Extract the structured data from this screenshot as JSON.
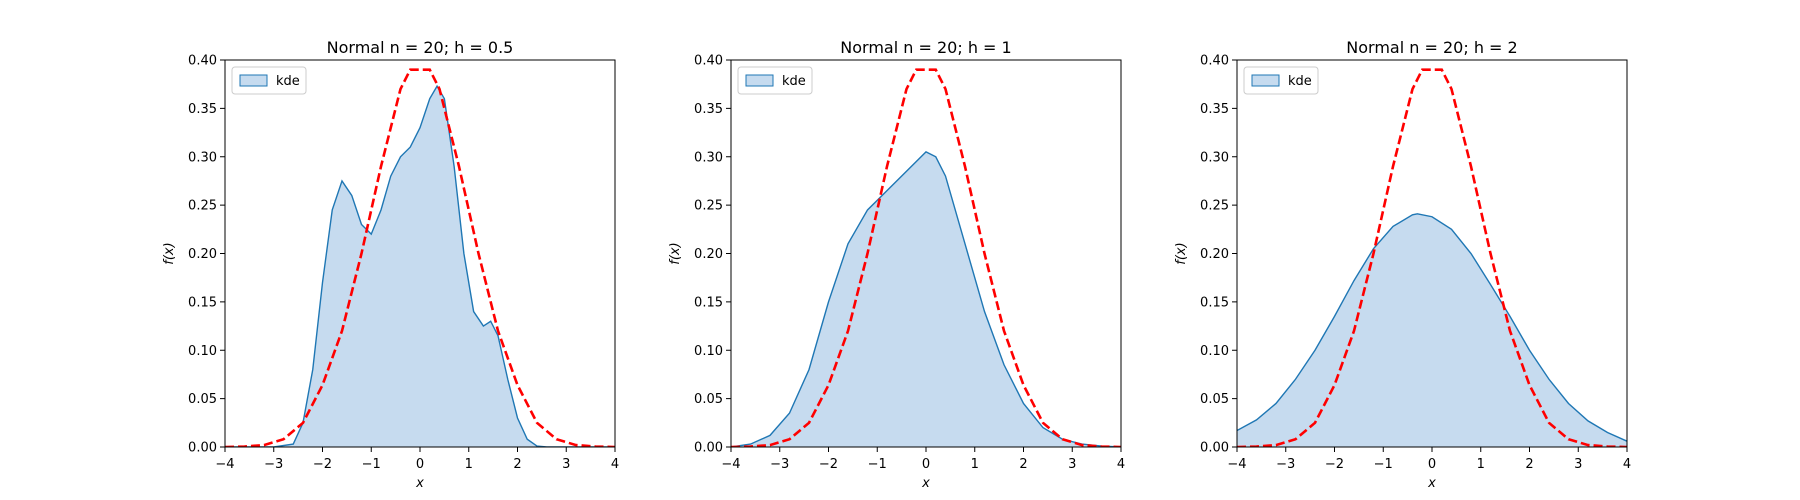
{
  "chart_data": [
    {
      "type": "area",
      "title": "Normal n = 20; h = 0.5",
      "xlabel": "x",
      "ylabel": "f(x)",
      "xlim": [
        -4,
        4
      ],
      "ylim": [
        0,
        0.4
      ],
      "xticks": [
        -4,
        -3,
        -2,
        -1,
        0,
        1,
        2,
        3,
        4
      ],
      "yticks": [
        "0.00",
        "0.05",
        "0.10",
        "0.15",
        "0.20",
        "0.25",
        "0.30",
        "0.35",
        "0.40"
      ],
      "legend": {
        "position": "top-left",
        "entries": [
          "kde"
        ]
      },
      "grid": false,
      "series": [
        {
          "name": "kde",
          "style": "filled-area",
          "color": "#1f77b4",
          "fill": "#c6dbef",
          "x": [
            -4.0,
            -3.0,
            -2.6,
            -2.4,
            -2.2,
            -2.0,
            -1.8,
            -1.6,
            -1.4,
            -1.2,
            -1.0,
            -0.8,
            -0.6,
            -0.4,
            -0.2,
            0.0,
            0.2,
            0.35,
            0.5,
            0.7,
            0.9,
            1.1,
            1.3,
            1.45,
            1.6,
            1.8,
            2.0,
            2.2,
            2.4,
            2.6,
            4.0
          ],
          "y": [
            0.0,
            0.0,
            0.003,
            0.025,
            0.08,
            0.17,
            0.245,
            0.275,
            0.26,
            0.23,
            0.22,
            0.245,
            0.28,
            0.3,
            0.31,
            0.33,
            0.36,
            0.373,
            0.36,
            0.29,
            0.2,
            0.14,
            0.125,
            0.13,
            0.115,
            0.07,
            0.03,
            0.008,
            0.001,
            0.0,
            0.0
          ]
        },
        {
          "name": "",
          "style": "dashed-line",
          "color": "#ff0000",
          "x": [
            -4.0,
            -3.6,
            -3.2,
            -2.8,
            -2.4,
            -2.0,
            -1.6,
            -1.2,
            -0.8,
            -0.4,
            -0.2,
            0.2,
            0.4,
            0.8,
            1.2,
            1.6,
            2.0,
            2.4,
            2.8,
            3.2,
            3.6,
            4.0
          ],
          "y": [
            0.0,
            0.0005,
            0.002,
            0.008,
            0.025,
            0.064,
            0.12,
            0.2,
            0.29,
            0.37,
            0.39,
            0.39,
            0.37,
            0.29,
            0.2,
            0.12,
            0.064,
            0.025,
            0.008,
            0.002,
            0.0005,
            0.0
          ]
        }
      ]
    },
    {
      "type": "area",
      "title": "Normal n = 20; h = 1",
      "xlabel": "x",
      "ylabel": "f(x)",
      "xlim": [
        -4,
        4
      ],
      "ylim": [
        0,
        0.4
      ],
      "xticks": [
        -4,
        -3,
        -2,
        -1,
        0,
        1,
        2,
        3,
        4
      ],
      "yticks": [
        "0.00",
        "0.05",
        "0.10",
        "0.15",
        "0.20",
        "0.25",
        "0.30",
        "0.35",
        "0.40"
      ],
      "legend": {
        "position": "top-left",
        "entries": [
          "kde"
        ]
      },
      "grid": false,
      "series": [
        {
          "name": "kde",
          "style": "filled-area",
          "color": "#1f77b4",
          "fill": "#c6dbef",
          "x": [
            -4.0,
            -3.6,
            -3.2,
            -2.8,
            -2.4,
            -2.0,
            -1.6,
            -1.2,
            -0.8,
            -0.4,
            0.0,
            0.2,
            0.4,
            0.8,
            1.2,
            1.6,
            2.0,
            2.4,
            2.8,
            3.2,
            3.6,
            4.0
          ],
          "y": [
            0.0,
            0.003,
            0.012,
            0.035,
            0.08,
            0.15,
            0.21,
            0.245,
            0.265,
            0.285,
            0.305,
            0.3,
            0.28,
            0.21,
            0.14,
            0.085,
            0.045,
            0.02,
            0.008,
            0.003,
            0.001,
            0.0
          ]
        },
        {
          "name": "",
          "style": "dashed-line",
          "color": "#ff0000",
          "x": [
            -4.0,
            -3.6,
            -3.2,
            -2.8,
            -2.4,
            -2.0,
            -1.6,
            -1.2,
            -0.8,
            -0.4,
            -0.2,
            0.2,
            0.4,
            0.8,
            1.2,
            1.6,
            2.0,
            2.4,
            2.8,
            3.2,
            3.6,
            4.0
          ],
          "y": [
            0.0,
            0.0005,
            0.002,
            0.008,
            0.025,
            0.064,
            0.12,
            0.2,
            0.29,
            0.37,
            0.39,
            0.39,
            0.37,
            0.29,
            0.2,
            0.12,
            0.064,
            0.025,
            0.008,
            0.002,
            0.0005,
            0.0
          ]
        }
      ]
    },
    {
      "type": "area",
      "title": "Normal n = 20; h = 2",
      "xlabel": "x",
      "ylabel": "f(x)",
      "xlim": [
        -4,
        4
      ],
      "ylim": [
        0,
        0.4
      ],
      "xticks": [
        -4,
        -3,
        -2,
        -1,
        0,
        1,
        2,
        3,
        4
      ],
      "yticks": [
        "0.00",
        "0.05",
        "0.10",
        "0.15",
        "0.20",
        "0.25",
        "0.30",
        "0.35",
        "0.40"
      ],
      "legend": {
        "position": "top-left",
        "entries": [
          "kde"
        ]
      },
      "grid": false,
      "series": [
        {
          "name": "kde",
          "style": "filled-area",
          "color": "#1f77b4",
          "fill": "#c6dbef",
          "x": [
            -4.0,
            -3.6,
            -3.2,
            -2.8,
            -2.4,
            -2.0,
            -1.6,
            -1.2,
            -0.8,
            -0.4,
            -0.3,
            0.0,
            0.4,
            0.8,
            1.2,
            1.6,
            2.0,
            2.4,
            2.8,
            3.2,
            3.6,
            4.0
          ],
          "y": [
            0.017,
            0.028,
            0.045,
            0.07,
            0.1,
            0.135,
            0.172,
            0.205,
            0.228,
            0.24,
            0.241,
            0.238,
            0.225,
            0.2,
            0.168,
            0.135,
            0.1,
            0.07,
            0.045,
            0.027,
            0.015,
            0.006
          ]
        },
        {
          "name": "",
          "style": "dashed-line",
          "color": "#ff0000",
          "x": [
            -4.0,
            -3.6,
            -3.2,
            -2.8,
            -2.4,
            -2.0,
            -1.6,
            -1.2,
            -0.8,
            -0.4,
            -0.2,
            0.2,
            0.4,
            0.8,
            1.2,
            1.6,
            2.0,
            2.4,
            2.8,
            3.2,
            3.6,
            4.0
          ],
          "y": [
            0.0,
            0.0005,
            0.002,
            0.008,
            0.025,
            0.064,
            0.12,
            0.2,
            0.29,
            0.37,
            0.39,
            0.39,
            0.37,
            0.29,
            0.2,
            0.12,
            0.064,
            0.025,
            0.008,
            0.002,
            0.0005,
            0.0
          ]
        }
      ]
    }
  ]
}
